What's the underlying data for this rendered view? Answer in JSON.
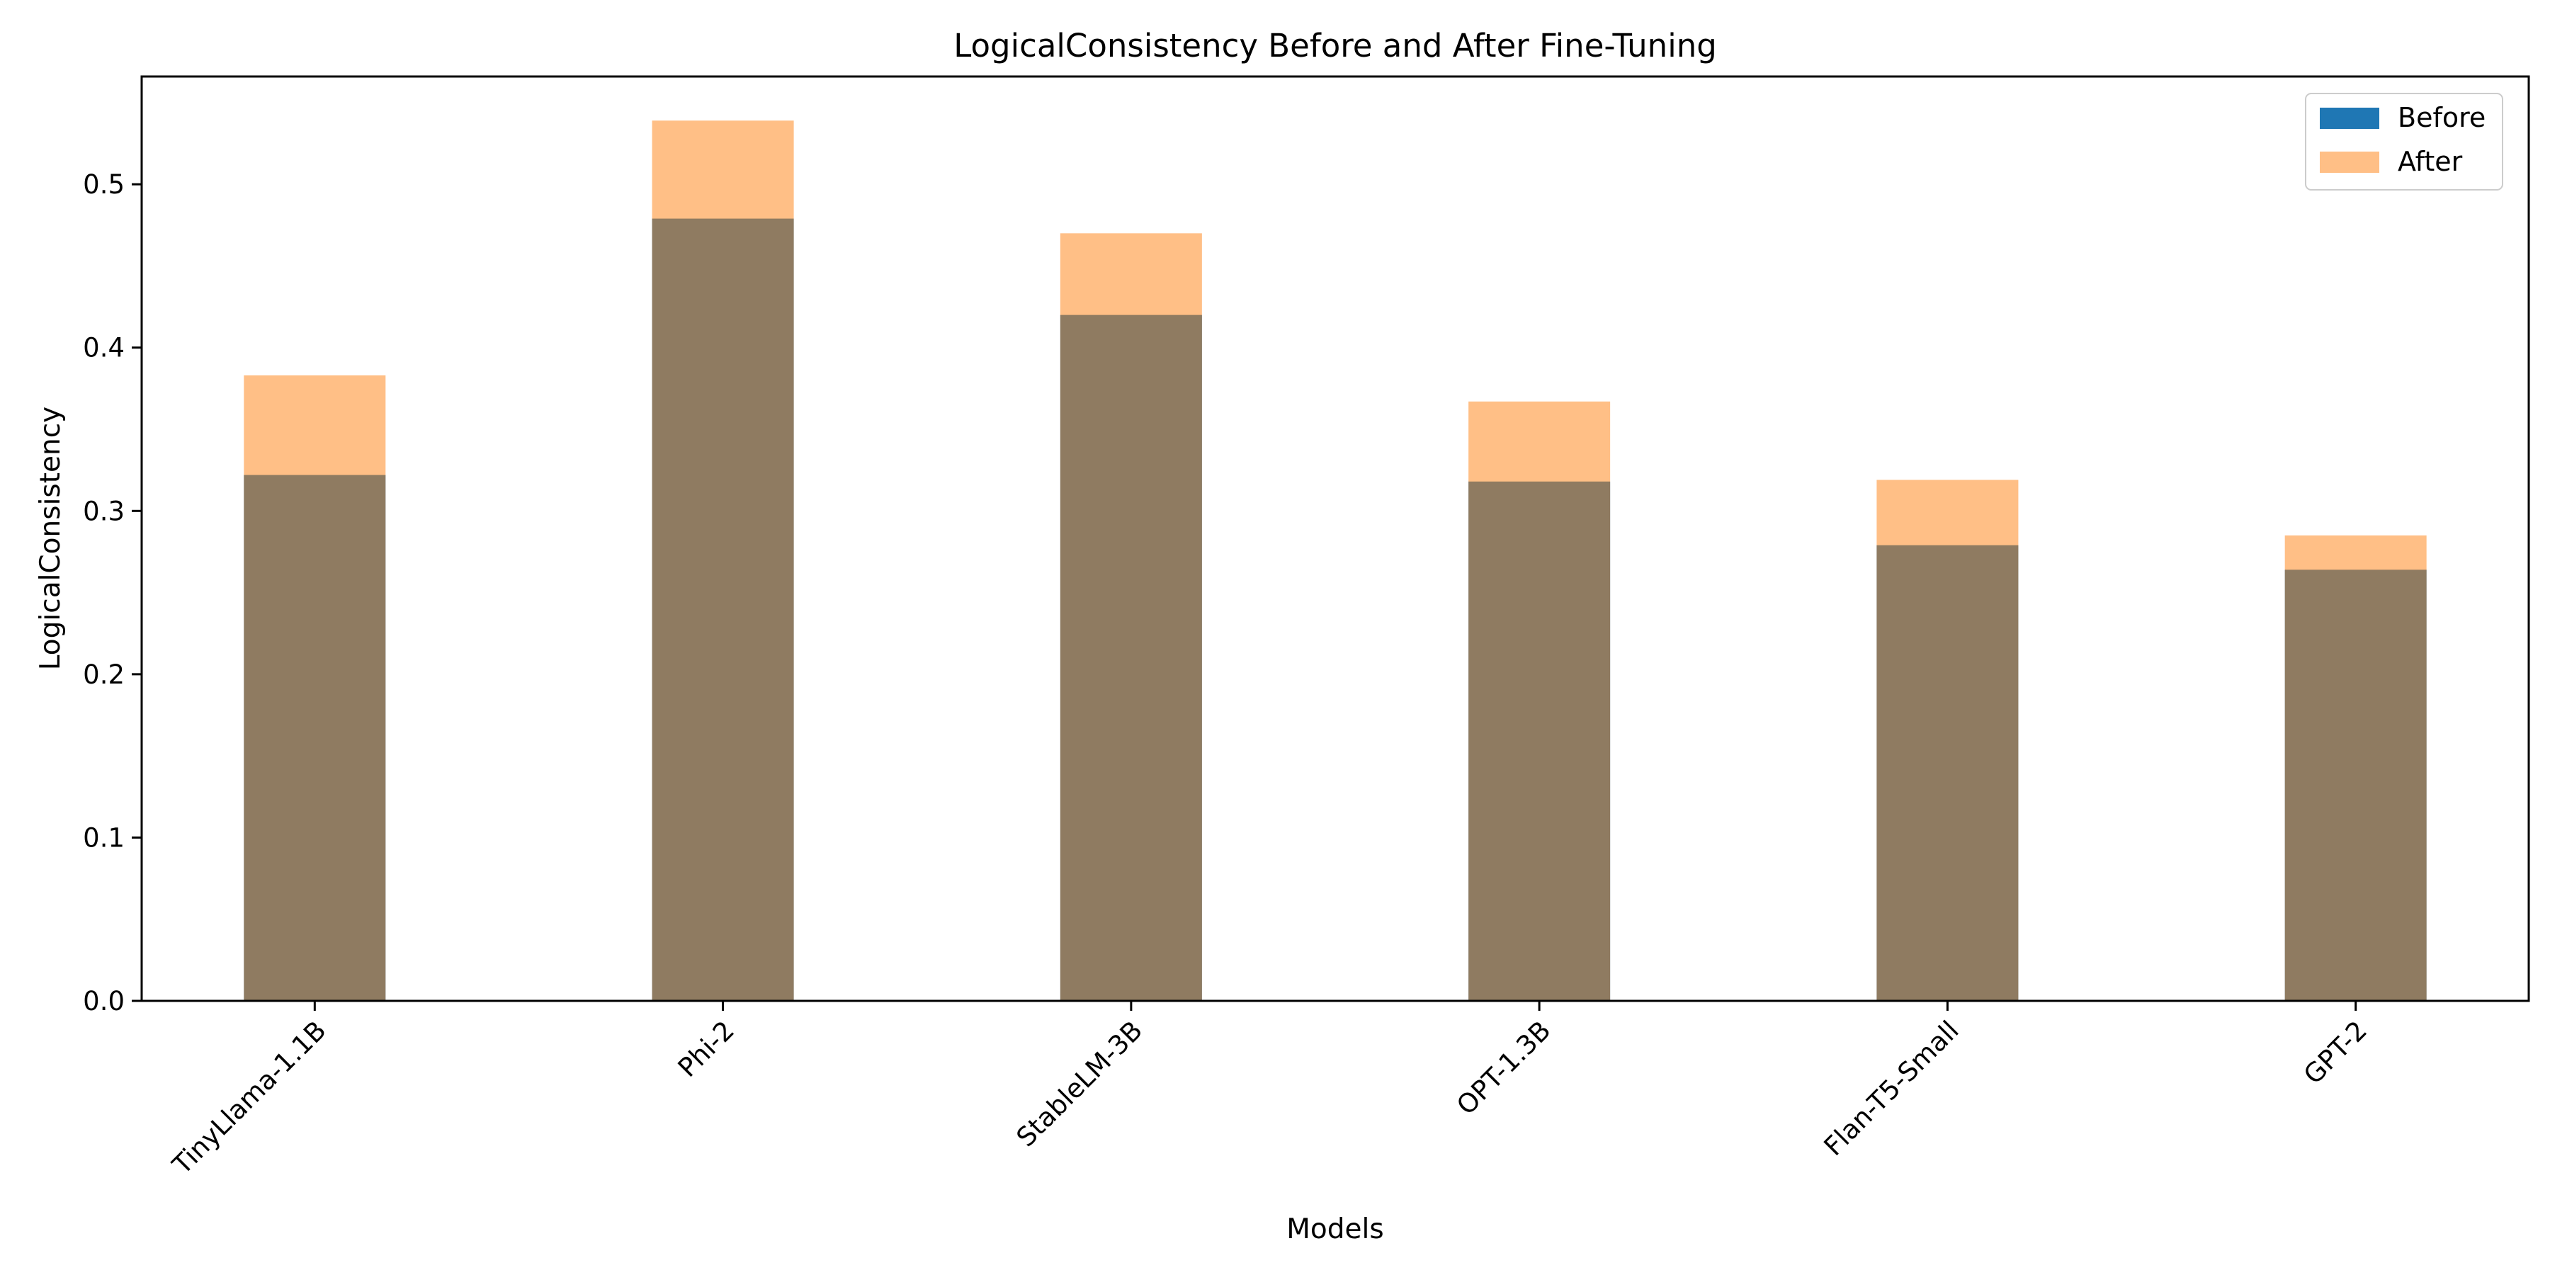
{
  "chart_data": {
    "type": "bar",
    "title": "LogicalConsistency Before and After Fine-Tuning",
    "xlabel": "Models",
    "ylabel": "LogicalConsistency",
    "categories": [
      "TinyLlama-1.1B",
      "Phi-2",
      "StableLM-3B",
      "OPT-1.3B",
      "Flan-T5-Small",
      "GPT-2"
    ],
    "series": [
      {
        "name": "Before",
        "values": [
          0.322,
          0.479,
          0.42,
          0.318,
          0.279,
          0.264
        ],
        "color": "#1f77b4"
      },
      {
        "name": "After",
        "values": [
          0.383,
          0.539,
          0.47,
          0.367,
          0.319,
          0.285
        ],
        "color": "#ff7f0e",
        "opacity": 0.5
      }
    ],
    "ylim": [
      0,
      0.566
    ],
    "yticks": [
      "0.0",
      "0.1",
      "0.2",
      "0.3",
      "0.4",
      "0.5"
    ],
    "grid": false,
    "legend_position": "top-right"
  }
}
